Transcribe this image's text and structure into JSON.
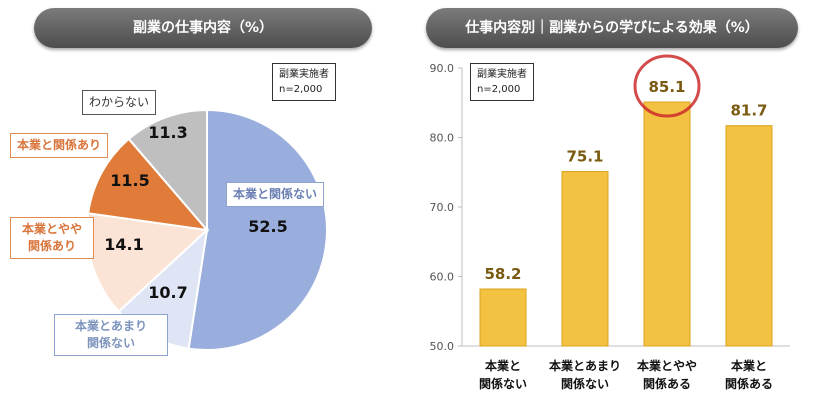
{
  "left": {
    "title": "副業の仕事内容（%）",
    "note": [
      "副業実施者",
      "n=2,000"
    ]
  },
  "right": {
    "title": "仕事内容別｜副業からの学びによる効果（%）",
    "note": [
      "副業実施者",
      "n=2,000"
    ]
  },
  "chart_data": [
    {
      "type": "pie",
      "title": "副業の仕事内容（%）",
      "slices": [
        {
          "label": "本業と関係ない",
          "value": 52.5,
          "color": "#9aaedd",
          "label_color": "#6a7fb3"
        },
        {
          "label": "本業とあまり 関係ない",
          "value": 10.7,
          "color": "#dfe5f4",
          "label_color": "#7d94bd"
        },
        {
          "label": "本業とやや 関係あり",
          "value": 14.1,
          "color": "#fbe4d5",
          "label_color": "#d9743b"
        },
        {
          "label": "本業と関係あり",
          "value": 11.5,
          "color": "#e07b39",
          "label_color": "#d9743b"
        },
        {
          "label": "わからない",
          "value": 11.3,
          "color": "#bfbfbf",
          "label_color": "#333333"
        }
      ],
      "value_labels": [
        "52.5",
        "10.7",
        "14.1",
        "11.5",
        "11.3"
      ]
    },
    {
      "type": "bar",
      "title": "仕事内容別｜副業からの学びによる効果（%）",
      "categories": [
        "本業と 関係ない",
        "本業とあまり 関係ない",
        "本業とやや 関係ある",
        "本業と 関係ある"
      ],
      "values": [
        58.2,
        75.1,
        85.1,
        81.7
      ],
      "value_labels": [
        "58.2",
        "75.1",
        "85.1",
        "81.7"
      ],
      "ylim": [
        50.0,
        90.0
      ],
      "yticks": [
        "50.0",
        "60.0",
        "70.0",
        "80.0",
        "90.0"
      ],
      "highlight_index": 2,
      "bar_color": "#f4c242",
      "label_color": "#7a5a10",
      "grid": false
    }
  ]
}
